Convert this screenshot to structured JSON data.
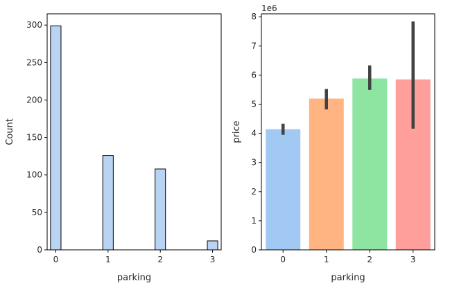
{
  "chart_data": [
    {
      "type": "bar",
      "subtype": "histogram",
      "xlabel": "parking",
      "ylabel": "Count",
      "xlim": [
        -0.165,
        3.165
      ],
      "ylim": [
        0,
        315
      ],
      "x_ticks": [
        0,
        1,
        2,
        3
      ],
      "y_ticks": [
        0,
        50,
        100,
        150,
        200,
        250,
        300
      ],
      "bar_width": 0.2,
      "bars": [
        {
          "x": 0,
          "value": 299
        },
        {
          "x": 1,
          "value": 126
        },
        {
          "x": 2,
          "value": 108
        },
        {
          "x": 3,
          "value": 12
        }
      ],
      "colors": {
        "fill": "#b8d4f2",
        "edge": "#000000"
      },
      "grid": false,
      "legend": "none"
    },
    {
      "type": "bar",
      "xlabel": "parking",
      "ylabel": "price",
      "offset_label": "1e6",
      "categories": [
        "0",
        "1",
        "2",
        "3"
      ],
      "values": [
        4.14,
        5.19,
        5.88,
        5.85
      ],
      "error_bars": [
        {
          "low": 3.95,
          "high": 4.33
        },
        {
          "low": 4.82,
          "high": 5.52
        },
        {
          "low": 5.49,
          "high": 6.33
        },
        {
          "low": 4.16,
          "high": 7.84
        }
      ],
      "ylim": [
        0,
        8.1
      ],
      "y_ticks": [
        0,
        1,
        2,
        3,
        4,
        5,
        6,
        7,
        8
      ],
      "colors": [
        "#a1c9f4",
        "#ffb482",
        "#8de5a1",
        "#ff9f9b"
      ],
      "error_color": "#424242",
      "grid": false,
      "legend": "none"
    }
  ]
}
